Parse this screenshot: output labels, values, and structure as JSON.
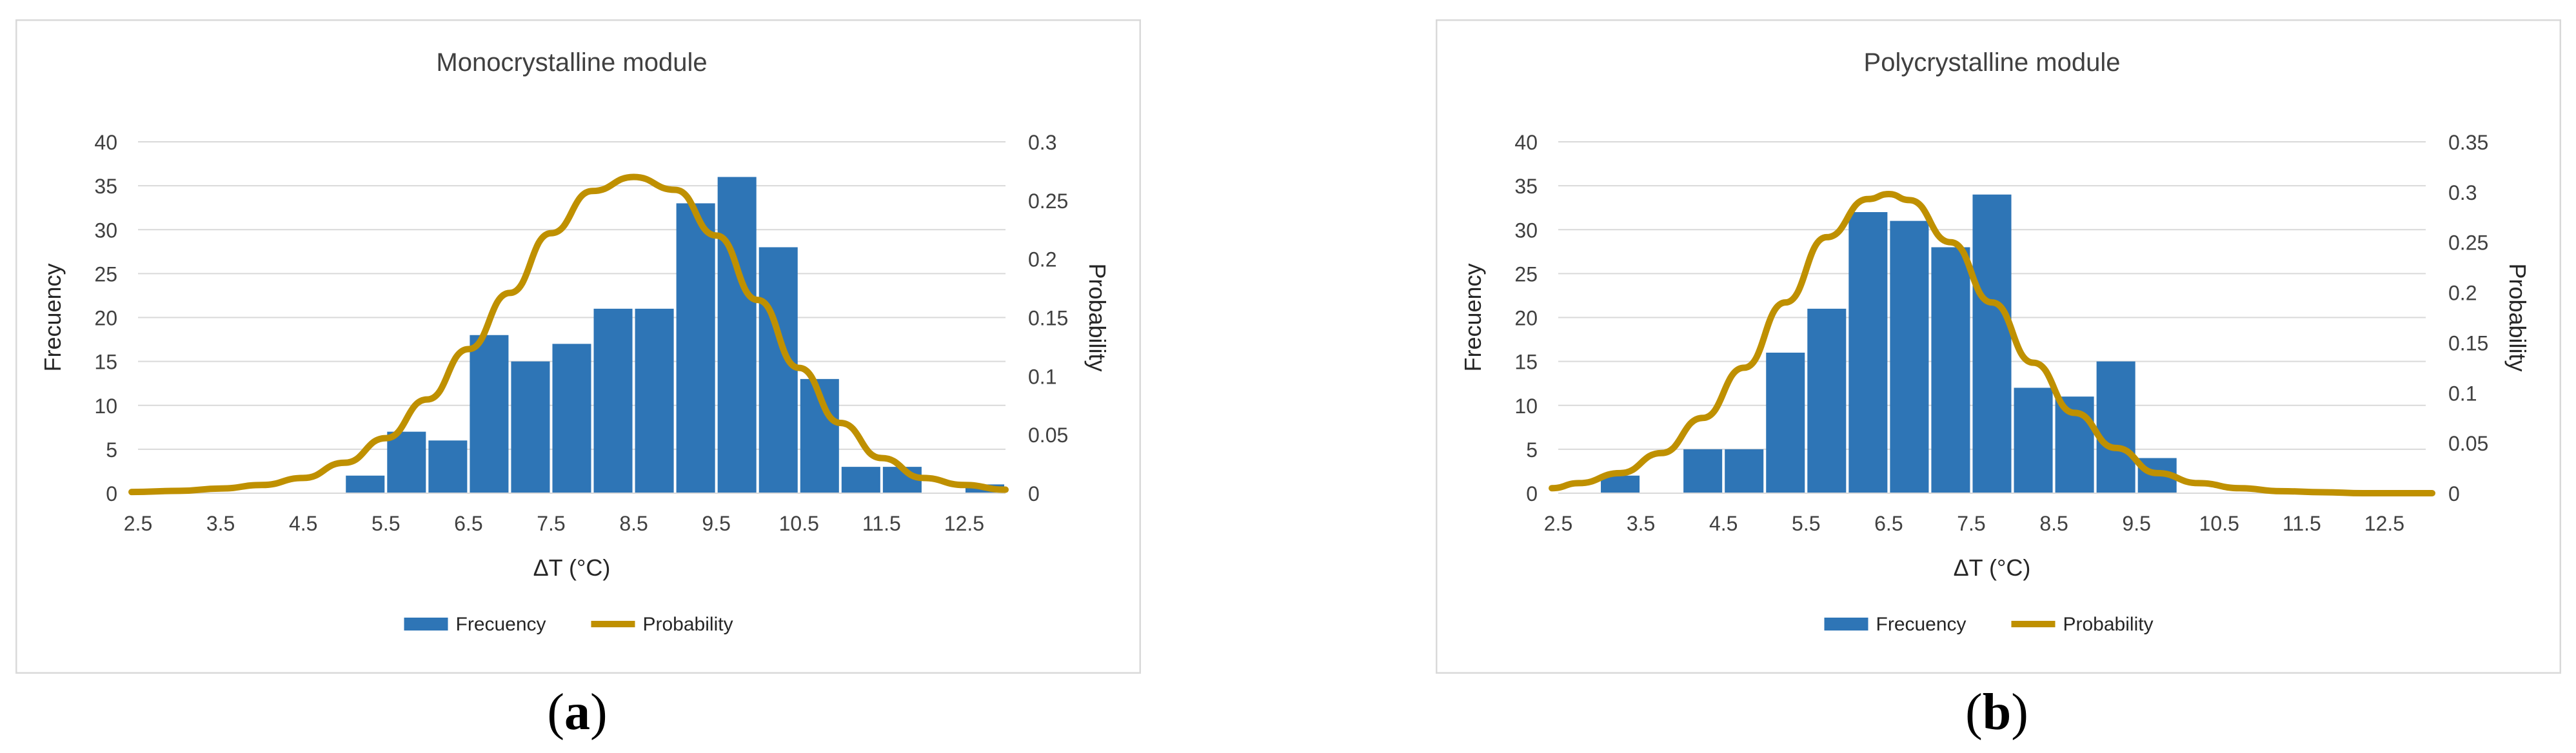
{
  "captions": {
    "a_open": "(",
    "a_letter": "a",
    "a_close": ")",
    "b_open": "(",
    "b_letter": "b",
    "b_close": ")"
  },
  "colors": {
    "bar": "#2E75B6",
    "line": "#BF9000",
    "grid": "#D9D9D9",
    "frame": "#D9D9D9"
  },
  "chart_data": [
    {
      "type": "bar",
      "title": "Monocrystalline module",
      "xlabel": "ΔT (°C)",
      "ylabel": "Frecuency",
      "y2label": "Probability",
      "ylim": [
        0,
        40
      ],
      "y2lim": [
        0,
        0.3
      ],
      "xticks": [
        "2.5",
        "3.5",
        "4.5",
        "5.5",
        "6.5",
        "7.5",
        "8.5",
        "9.5",
        "10.5",
        "11.5",
        "12.5"
      ],
      "yticks": [
        "0",
        "5",
        "10",
        "15",
        "20",
        "25",
        "30",
        "35",
        "40"
      ],
      "y2ticks": [
        "0",
        "0.05",
        "0.1",
        "0.15",
        "0.2",
        "0.25",
        "0.3"
      ],
      "bins_x": [
        2.5,
        3.0,
        3.5,
        4.0,
        4.5,
        5.0,
        5.5,
        6.0,
        6.5,
        7.0,
        7.5,
        8.0,
        8.5,
        9.0,
        9.5,
        10.0,
        10.5,
        11.0,
        11.5,
        12.0,
        12.5
      ],
      "series": [
        {
          "name": "Frecuency",
          "kind": "bar",
          "values": [
            0,
            0,
            0,
            0,
            0,
            2,
            7,
            6,
            18,
            15,
            17,
            21,
            21,
            33,
            36,
            28,
            13,
            3,
            3,
            0,
            1
          ]
        },
        {
          "name": "Probability",
          "kind": "line",
          "x": [
            2.25,
            3.0,
            3.5,
            4.0,
            4.5,
            5.0,
            5.5,
            6.0,
            6.5,
            7.0,
            7.5,
            8.0,
            8.5,
            9.0,
            9.5,
            10.0,
            10.5,
            11.0,
            11.5,
            12.0,
            12.5,
            13.0
          ],
          "values": [
            0.001,
            0.002,
            0.004,
            0.007,
            0.013,
            0.026,
            0.047,
            0.08,
            0.123,
            0.171,
            0.222,
            0.258,
            0.27,
            0.259,
            0.22,
            0.165,
            0.107,
            0.06,
            0.03,
            0.013,
            0.007,
            0.003
          ]
        }
      ],
      "legend": [
        "Frecuency",
        "Probability"
      ],
      "legend_position": "bottom"
    },
    {
      "type": "bar",
      "title": "Polycrystalline module",
      "xlabel": "ΔT (°C)",
      "ylabel": "Frecuency",
      "y2label": "Probability",
      "ylim": [
        0,
        40
      ],
      "y2lim": [
        0,
        0.35
      ],
      "xticks": [
        "2.5",
        "3.5",
        "4.5",
        "5.5",
        "6.5",
        "7.5",
        "8.5",
        "9.5",
        "10.5",
        "11.5",
        "12.5"
      ],
      "yticks": [
        "0",
        "5",
        "10",
        "15",
        "20",
        "25",
        "30",
        "35",
        "40"
      ],
      "y2ticks": [
        "0",
        "0.05",
        "0.1",
        "0.15",
        "0.2",
        "0.25",
        "0.3",
        "0.35"
      ],
      "bins_x": [
        2.5,
        3.0,
        3.5,
        4.0,
        4.5,
        5.0,
        5.5,
        6.0,
        6.5,
        7.0,
        7.5,
        8.0,
        8.5,
        9.0,
        9.5,
        10.0,
        10.5,
        11.0,
        11.5,
        12.0,
        12.5
      ],
      "series": [
        {
          "name": "Frecuency",
          "kind": "bar",
          "values": [
            0,
            2,
            0,
            5,
            5,
            16,
            21,
            32,
            31,
            28,
            34,
            12,
            11,
            15,
            4,
            0,
            0,
            0,
            0,
            0,
            0
          ]
        },
        {
          "name": "Probability",
          "kind": "line",
          "x": [
            2.25,
            2.75,
            3.25,
            3.75,
            4.25,
            4.75,
            5.25,
            5.75,
            6.25,
            6.5,
            6.75,
            7.25,
            7.75,
            8.25,
            8.75,
            9.25,
            9.75,
            10.25,
            10.75,
            11.25,
            11.75,
            12.25,
            12.75,
            13.25
          ],
          "values": [
            0.005,
            0.01,
            0.02,
            0.04,
            0.075,
            0.125,
            0.19,
            0.255,
            0.293,
            0.298,
            0.292,
            0.25,
            0.19,
            0.13,
            0.08,
            0.045,
            0.02,
            0.01,
            0.005,
            0.002,
            0.001,
            0.0,
            0.0,
            0.0
          ]
        }
      ],
      "legend": [
        "Frecuency",
        "Probability"
      ],
      "legend_position": "bottom"
    }
  ]
}
